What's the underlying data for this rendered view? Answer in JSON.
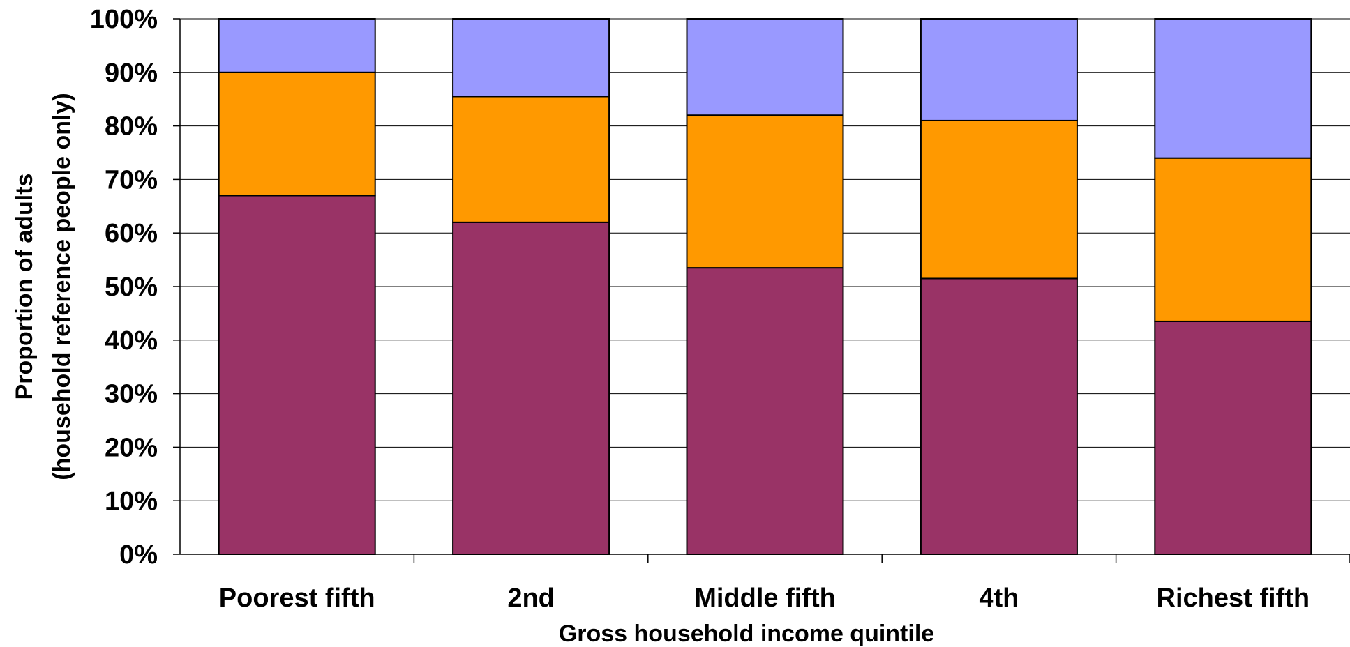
{
  "chart_data": {
    "type": "bar",
    "stacked": true,
    "categories": [
      "Poorest fifth",
      "2nd",
      "Middle fifth",
      "4th",
      "Richest fifth"
    ],
    "series": [
      {
        "color": "#993366",
        "values": [
          67,
          62,
          53.5,
          51.5,
          43.5
        ]
      },
      {
        "color": "#FF9900",
        "values": [
          23,
          23.5,
          28.5,
          29.5,
          30.5
        ]
      },
      {
        "color": "#9999FF",
        "values": [
          10,
          14.5,
          18,
          19,
          26
        ]
      }
    ],
    "ylim": [
      0,
      100
    ],
    "yticks": [
      "0%",
      "10%",
      "20%",
      "30%",
      "40%",
      "50%",
      "60%",
      "70%",
      "80%",
      "90%",
      "100%"
    ],
    "xlabel": "Gross household income quintile",
    "ylabel_line1": "Proportion of adults",
    "ylabel_line2": "(household reference people only)",
    "grid": true,
    "legend": "none"
  }
}
